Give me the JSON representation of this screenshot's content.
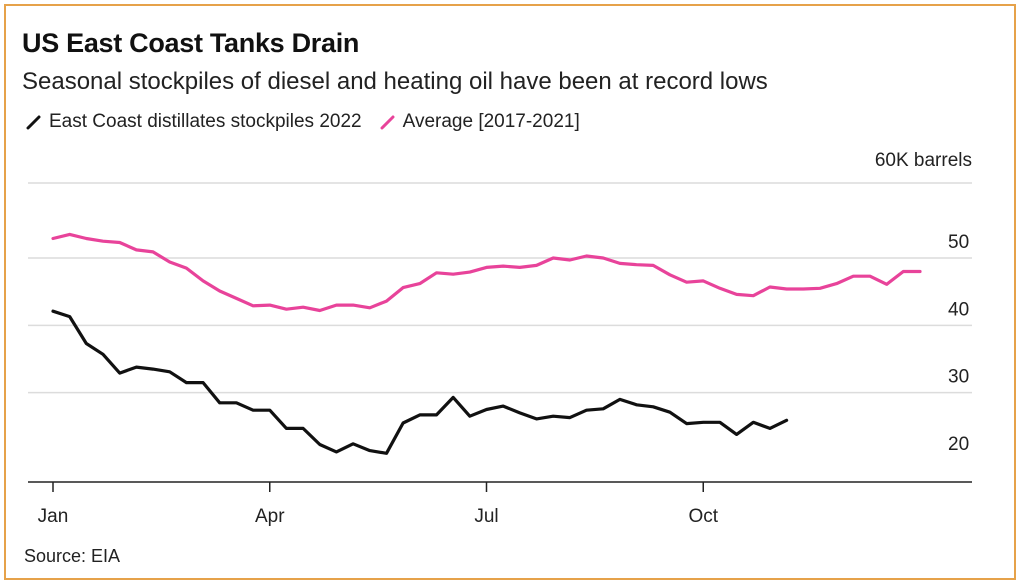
{
  "title": "US East Coast Tanks Drain",
  "subtitle": "Seasonal stockpiles of diesel and heating oil have been at record lows",
  "source": "Source: EIA",
  "colors": {
    "series_2022": "#111111",
    "series_avg": "#e8439a",
    "frame": "#e6a24a"
  },
  "chart_data": {
    "type": "line",
    "ylabel": "60K barrels",
    "ylim": [
      18,
      60
    ],
    "yticks": [
      20,
      30,
      40,
      50
    ],
    "xticks": [
      {
        "label": "Jan",
        "week": 0
      },
      {
        "label": "Apr",
        "week": 13
      },
      {
        "label": "Jul",
        "week": 26
      },
      {
        "label": "Oct",
        "week": 39
      }
    ],
    "xlim": [
      0,
      53
    ],
    "series": [
      {
        "name": "East Coast distillates stockpiles 2022",
        "color": "#111111",
        "x": [
          0,
          1,
          2,
          3,
          4,
          5,
          6,
          7,
          8,
          9,
          10,
          11,
          12,
          13,
          14,
          15,
          16,
          17,
          18,
          19,
          20,
          21,
          22,
          23,
          24,
          25,
          26,
          27,
          28,
          29,
          30,
          31,
          32,
          33,
          34,
          35,
          36,
          37,
          38,
          39,
          40,
          41,
          42,
          43,
          44
        ],
        "y": [
          42.1,
          41.3,
          37.3,
          35.7,
          32.9,
          33.8,
          33.5,
          33.1,
          31.5,
          31.5,
          28.5,
          28.5,
          27.4,
          27.4,
          24.7,
          24.7,
          22.3,
          21.2,
          22.4,
          21.4,
          21.0,
          25.5,
          26.7,
          26.7,
          29.3,
          26.5,
          27.5,
          28.0,
          27.0,
          26.1,
          26.5,
          26.3,
          27.4,
          27.6,
          29.0,
          28.2,
          27.9,
          27.1,
          25.4,
          25.6,
          25.6,
          23.8,
          25.6,
          24.7,
          25.9
        ]
      },
      {
        "name": "Average [2017-2021]",
        "color": "#e8439a",
        "x": [
          0,
          1,
          2,
          3,
          4,
          5,
          6,
          7,
          8,
          9,
          10,
          11,
          12,
          13,
          14,
          15,
          16,
          17,
          18,
          19,
          20,
          21,
          22,
          23,
          24,
          25,
          26,
          27,
          28,
          29,
          30,
          31,
          32,
          33,
          34,
          35,
          36,
          37,
          38,
          39,
          40,
          41,
          42,
          43,
          44,
          45,
          46,
          47,
          48,
          49,
          50,
          51,
          52
        ],
        "y": [
          52.9,
          53.5,
          52.9,
          52.5,
          52.3,
          51.2,
          50.9,
          49.4,
          48.5,
          46.6,
          45.1,
          44.0,
          42.9,
          43.0,
          42.4,
          42.7,
          42.2,
          43.0,
          43.0,
          42.6,
          43.6,
          45.6,
          46.2,
          47.8,
          47.6,
          47.9,
          48.6,
          48.8,
          48.6,
          48.9,
          50.0,
          49.7,
          50.3,
          50.0,
          49.2,
          49.0,
          48.9,
          47.5,
          46.4,
          46.6,
          45.5,
          44.6,
          44.4,
          45.7,
          45.4,
          45.4,
          45.5,
          46.2,
          47.3,
          47.3,
          46.1,
          48.0,
          48.0
        ]
      }
    ],
    "grid": true,
    "legend": "top-left",
    "y_axis_side": "right"
  }
}
